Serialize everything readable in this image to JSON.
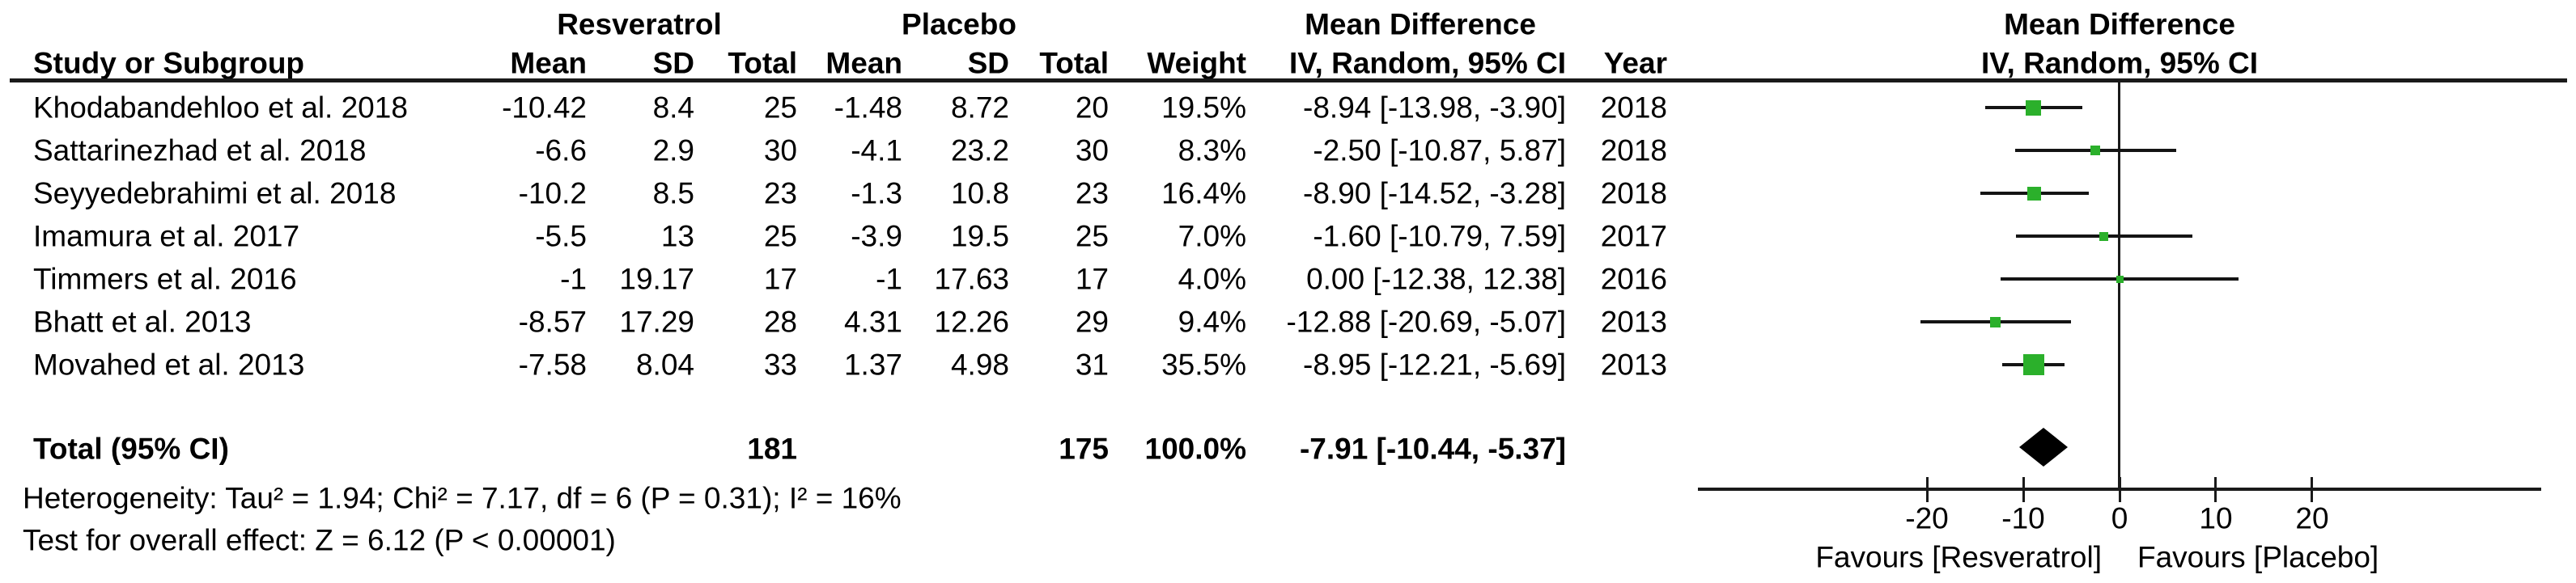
{
  "header": {
    "group_treatment": "Resveratrol",
    "group_control": "Placebo",
    "md_column_title": "Mean Difference",
    "plot_title": "Mean Difference",
    "col_study": "Study or Subgroup",
    "col_mean": "Mean",
    "col_sd": "SD",
    "col_total": "Total",
    "col_weight": "Weight",
    "col_ci": "IV, Random, 95% CI",
    "col_year": "Year",
    "plot_subtitle": "IV, Random, 95% CI"
  },
  "chart_data": {
    "type": "scatter",
    "variant": "forest-plot",
    "title": "Mean Difference",
    "subtitle": "IV, Random, 95% CI",
    "x_axis": {
      "ticks": [
        -20,
        -10,
        0,
        10,
        20
      ],
      "tick_labels": [
        "-20",
        "-10",
        "0",
        "10",
        "20"
      ],
      "range": [
        -44,
        44
      ],
      "zero_line": 0,
      "grid": false
    },
    "favours_left": "Favours [Resveratrol]",
    "favours_right": "Favours [Placebo]",
    "studies": [
      {
        "name": "Khodabandehloo et al. 2018",
        "mean_t": "-10.42",
        "sd_t": "8.4",
        "n_t": "25",
        "mean_c": "-1.48",
        "sd_c": "8.72",
        "n_c": "20",
        "weight": "19.5%",
        "weight_pct": 19.5,
        "md": -8.94,
        "ci_lo": -13.98,
        "ci_hi": -3.9,
        "ci_text": "-8.94 [-13.98, -3.90]",
        "year": "2018"
      },
      {
        "name": "Sattarinezhad et al. 2018",
        "mean_t": "-6.6",
        "sd_t": "2.9",
        "n_t": "30",
        "mean_c": "-4.1",
        "sd_c": "23.2",
        "n_c": "30",
        "weight": "8.3%",
        "weight_pct": 8.3,
        "md": -2.5,
        "ci_lo": -10.87,
        "ci_hi": 5.87,
        "ci_text": "-2.50 [-10.87, 5.87]",
        "year": "2018"
      },
      {
        "name": "Seyyedebrahimi et al. 2018",
        "mean_t": "-10.2",
        "sd_t": "8.5",
        "n_t": "23",
        "mean_c": "-1.3",
        "sd_c": "10.8",
        "n_c": "23",
        "weight": "16.4%",
        "weight_pct": 16.4,
        "md": -8.9,
        "ci_lo": -14.52,
        "ci_hi": -3.28,
        "ci_text": "-8.90 [-14.52, -3.28]",
        "year": "2018"
      },
      {
        "name": "Imamura et al. 2017",
        "mean_t": "-5.5",
        "sd_t": "13",
        "n_t": "25",
        "mean_c": "-3.9",
        "sd_c": "19.5",
        "n_c": "25",
        "weight": "7.0%",
        "weight_pct": 7.0,
        "md": -1.6,
        "ci_lo": -10.79,
        "ci_hi": 7.59,
        "ci_text": "-1.60 [-10.79, 7.59]",
        "year": "2017"
      },
      {
        "name": "Timmers et al. 2016",
        "mean_t": "-1",
        "sd_t": "19.17",
        "n_t": "17",
        "mean_c": "-1",
        "sd_c": "17.63",
        "n_c": "17",
        "weight": "4.0%",
        "weight_pct": 4.0,
        "md": 0.0,
        "ci_lo": -12.38,
        "ci_hi": 12.38,
        "ci_text": "0.00 [-12.38, 12.38]",
        "year": "2016"
      },
      {
        "name": "Bhatt et al. 2013",
        "mean_t": "-8.57",
        "sd_t": "17.29",
        "n_t": "28",
        "mean_c": "4.31",
        "sd_c": "12.26",
        "n_c": "29",
        "weight": "9.4%",
        "weight_pct": 9.4,
        "md": -12.88,
        "ci_lo": -20.69,
        "ci_hi": -5.07,
        "ci_text": "-12.88 [-20.69, -5.07]",
        "year": "2013"
      },
      {
        "name": "Movahed et al. 2013",
        "mean_t": "-7.58",
        "sd_t": "8.04",
        "n_t": "33",
        "mean_c": "1.37",
        "sd_c": "4.98",
        "n_c": "31",
        "weight": "35.5%",
        "weight_pct": 35.5,
        "md": -8.95,
        "ci_lo": -12.21,
        "ci_hi": -5.69,
        "ci_text": "-8.95 [-12.21, -5.69]",
        "year": "2013"
      }
    ],
    "total": {
      "label": "Total (95% CI)",
      "n_t": "181",
      "n_c": "175",
      "weight": "100.0%",
      "md": -7.91,
      "ci_lo": -10.44,
      "ci_hi": -5.37,
      "ci_text": "-7.91 [-10.44, -5.37]"
    }
  },
  "footer": {
    "heterogeneity": "Heterogeneity: Tau² = 1.94; Chi² = 7.17, df = 6 (P = 0.31); I² = 16%",
    "overall_effect": "Test for overall effect: Z = 6.12 (P < 0.00001)"
  },
  "colors": {
    "marker_green": "#2bb02b",
    "diamond_black": "#000000",
    "line_black": "#141414"
  }
}
